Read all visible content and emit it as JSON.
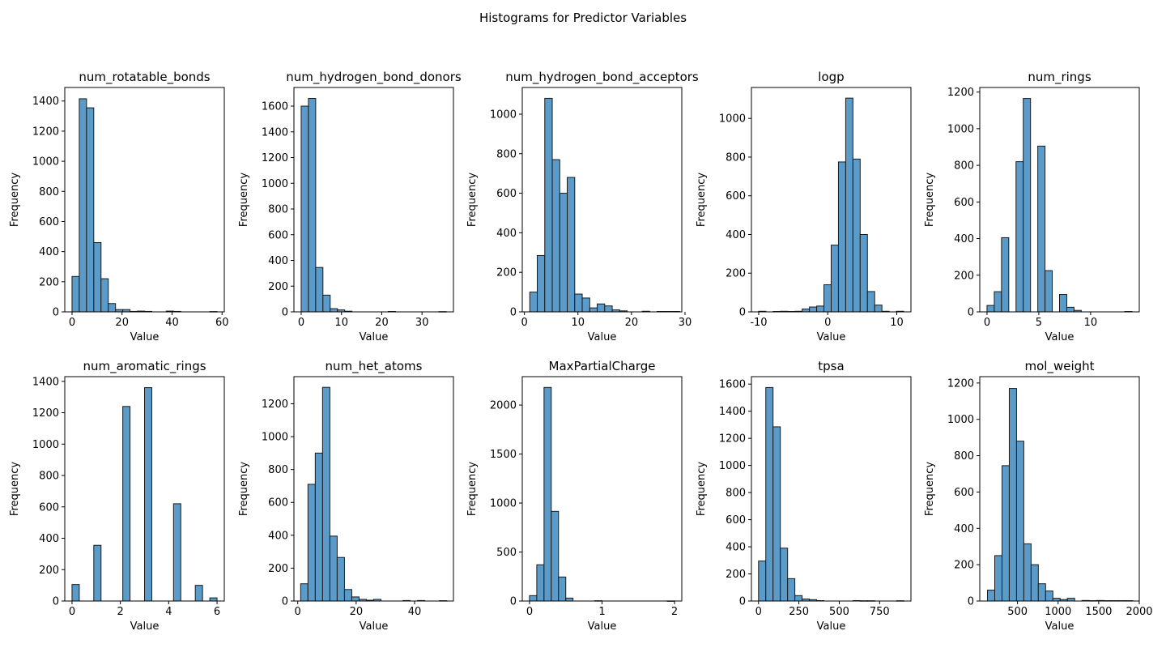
{
  "figure": {
    "title": "Histograms for Predictor Variables",
    "bar_color": "#5b9bc9",
    "edge_color": "#1a1a1a"
  },
  "chart_data": [
    {
      "type": "bar",
      "title": "num_rotatable_bonds",
      "xlabel": "Value",
      "ylabel": "Frequency",
      "xlim": [
        -2.9,
        60.9
      ],
      "ylim": [
        0,
        1490
      ],
      "xticks": [
        0,
        20,
        40,
        60
      ],
      "yticks": [
        0,
        200,
        400,
        600,
        800,
        1000,
        1200,
        1400
      ],
      "bins": {
        "start": 0,
        "width": 2.9
      },
      "values": [
        235,
        1415,
        1355,
        460,
        220,
        55,
        15,
        15,
        3,
        5,
        3,
        0,
        0,
        5,
        3,
        0,
        0,
        0,
        0,
        2
      ]
    },
    {
      "type": "bar",
      "title": "num_hydrogen_bond_donors",
      "xlabel": "Value",
      "ylabel": "Frequency",
      "xlim": [
        -1.8,
        37.8
      ],
      "ylim": [
        0,
        1745
      ],
      "xticks": [
        0,
        10,
        20,
        30
      ],
      "yticks": [
        0,
        200,
        400,
        600,
        800,
        1000,
        1200,
        1400,
        1600
      ],
      "bins": {
        "start": 0,
        "width": 1.8
      },
      "values": [
        1600,
        1660,
        345,
        130,
        25,
        15,
        5,
        0,
        0,
        0,
        0,
        0,
        3,
        0,
        0,
        0,
        0,
        0,
        0,
        2
      ]
    },
    {
      "type": "bar",
      "title": "num_hydrogen_bond_acceptors",
      "xlabel": "Value",
      "ylabel": "Frequency",
      "xlim": [
        -0.4,
        29.4
      ],
      "ylim": [
        0,
        1135
      ],
      "xticks": [
        0,
        10,
        20,
        30
      ],
      "yticks": [
        0,
        200,
        400,
        600,
        800,
        1000
      ],
      "bins": {
        "start": 1,
        "width": 1.4
      },
      "values": [
        100,
        285,
        1080,
        770,
        600,
        680,
        90,
        70,
        20,
        40,
        30,
        10,
        5,
        0,
        0,
        3,
        0,
        2,
        2,
        2
      ]
    },
    {
      "type": "bar",
      "title": "logp",
      "xlabel": "Value",
      "ylabel": "Frequency",
      "xlim": [
        -11.05,
        12.05
      ],
      "ylim": [
        0,
        1160
      ],
      "xticks": [
        -10,
        0,
        10
      ],
      "yticks": [
        0,
        200,
        400,
        600,
        800,
        1000
      ],
      "bins": {
        "start": -10,
        "width": 1.05
      },
      "values": [
        3,
        0,
        2,
        3,
        2,
        3,
        15,
        25,
        30,
        140,
        345,
        775,
        1105,
        790,
        400,
        105,
        35,
        3,
        0,
        3
      ]
    },
    {
      "type": "bar",
      "title": "num_rings",
      "xlabel": "Value",
      "ylabel": "Frequency",
      "xlim": [
        -0.7,
        14.7
      ],
      "ylim": [
        0,
        1225
      ],
      "xticks": [
        0,
        5,
        10
      ],
      "yticks": [
        0,
        200,
        400,
        600,
        800,
        1000,
        1200
      ],
      "bins": {
        "start": 0,
        "width": 0.7
      },
      "values": [
        35,
        110,
        405,
        0,
        820,
        1165,
        0,
        905,
        225,
        0,
        95,
        25,
        8,
        0,
        0,
        0,
        0,
        0,
        0,
        2
      ]
    },
    {
      "type": "bar",
      "title": "num_aromatic_rings",
      "xlabel": "Value",
      "ylabel": "Frequency",
      "xlim": [
        -0.3,
        6.3
      ],
      "ylim": [
        0,
        1430
      ],
      "xticks": [
        0,
        2,
        4,
        6
      ],
      "yticks": [
        0,
        200,
        400,
        600,
        800,
        1000,
        1200,
        1400
      ],
      "bins": {
        "start": 0,
        "width": 0.3
      },
      "values": [
        105,
        0,
        0,
        355,
        0,
        0,
        0,
        1240,
        0,
        0,
        1360,
        0,
        0,
        0,
        620,
        0,
        0,
        100,
        0,
        20
      ]
    },
    {
      "type": "bar",
      "title": "num_het_atoms",
      "xlabel": "Value",
      "ylabel": "Frequency",
      "xlim": [
        -1.3,
        53.3
      ],
      "ylim": [
        0,
        1365
      ],
      "xticks": [
        0,
        20,
        40
      ],
      "yticks": [
        0,
        200,
        400,
        600,
        800,
        1000,
        1200
      ],
      "bins": {
        "start": 1,
        "width": 2.5
      },
      "values": [
        105,
        710,
        900,
        1300,
        395,
        265,
        70,
        25,
        10,
        5,
        10,
        0,
        0,
        0,
        3,
        0,
        3,
        0,
        0,
        2
      ]
    },
    {
      "type": "bar",
      "title": "MaxPartialCharge",
      "xlabel": "Value",
      "ylabel": "Frequency",
      "xlim": [
        -0.1,
        2.1
      ],
      "ylim": [
        0,
        2290
      ],
      "xticks": [
        0,
        1,
        2
      ],
      "yticks": [
        0,
        500,
        1000,
        1500,
        2000
      ],
      "bins": {
        "start": 0,
        "width": 0.1
      },
      "values": [
        55,
        370,
        2180,
        915,
        245,
        30,
        0,
        0,
        0,
        3,
        0,
        0,
        0,
        0,
        0,
        0,
        0,
        0,
        0,
        1
      ]
    },
    {
      "type": "bar",
      "title": "tpsa",
      "xlabel": "Value",
      "ylabel": "Frequency",
      "xlim": [
        -44.0,
        944.0
      ],
      "ylim": [
        0,
        1655
      ],
      "xticks": [
        0,
        250,
        500,
        750
      ],
      "yticks": [
        0,
        200,
        400,
        600,
        800,
        1000,
        1200,
        1400,
        1600
      ],
      "bins": {
        "start": 0,
        "width": 45.0
      },
      "values": [
        295,
        1575,
        1285,
        390,
        165,
        40,
        15,
        10,
        3,
        0,
        0,
        0,
        0,
        3,
        2,
        2,
        0,
        0,
        0,
        2
      ]
    },
    {
      "type": "bar",
      "title": "mol_weight",
      "xlabel": "Value",
      "ylabel": "Frequency",
      "xlim": [
        35,
        2000
      ],
      "ylim": [
        0,
        1235
      ],
      "xticks": [
        500,
        1000,
        1500,
        2000
      ],
      "yticks": [
        0,
        200,
        400,
        600,
        800,
        1000,
        1200
      ],
      "bins": {
        "start": 130,
        "width": 89.5
      },
      "values": [
        60,
        250,
        745,
        1170,
        880,
        315,
        200,
        95,
        55,
        15,
        8,
        15,
        0,
        3,
        2,
        3,
        2,
        2,
        2,
        2
      ]
    }
  ]
}
